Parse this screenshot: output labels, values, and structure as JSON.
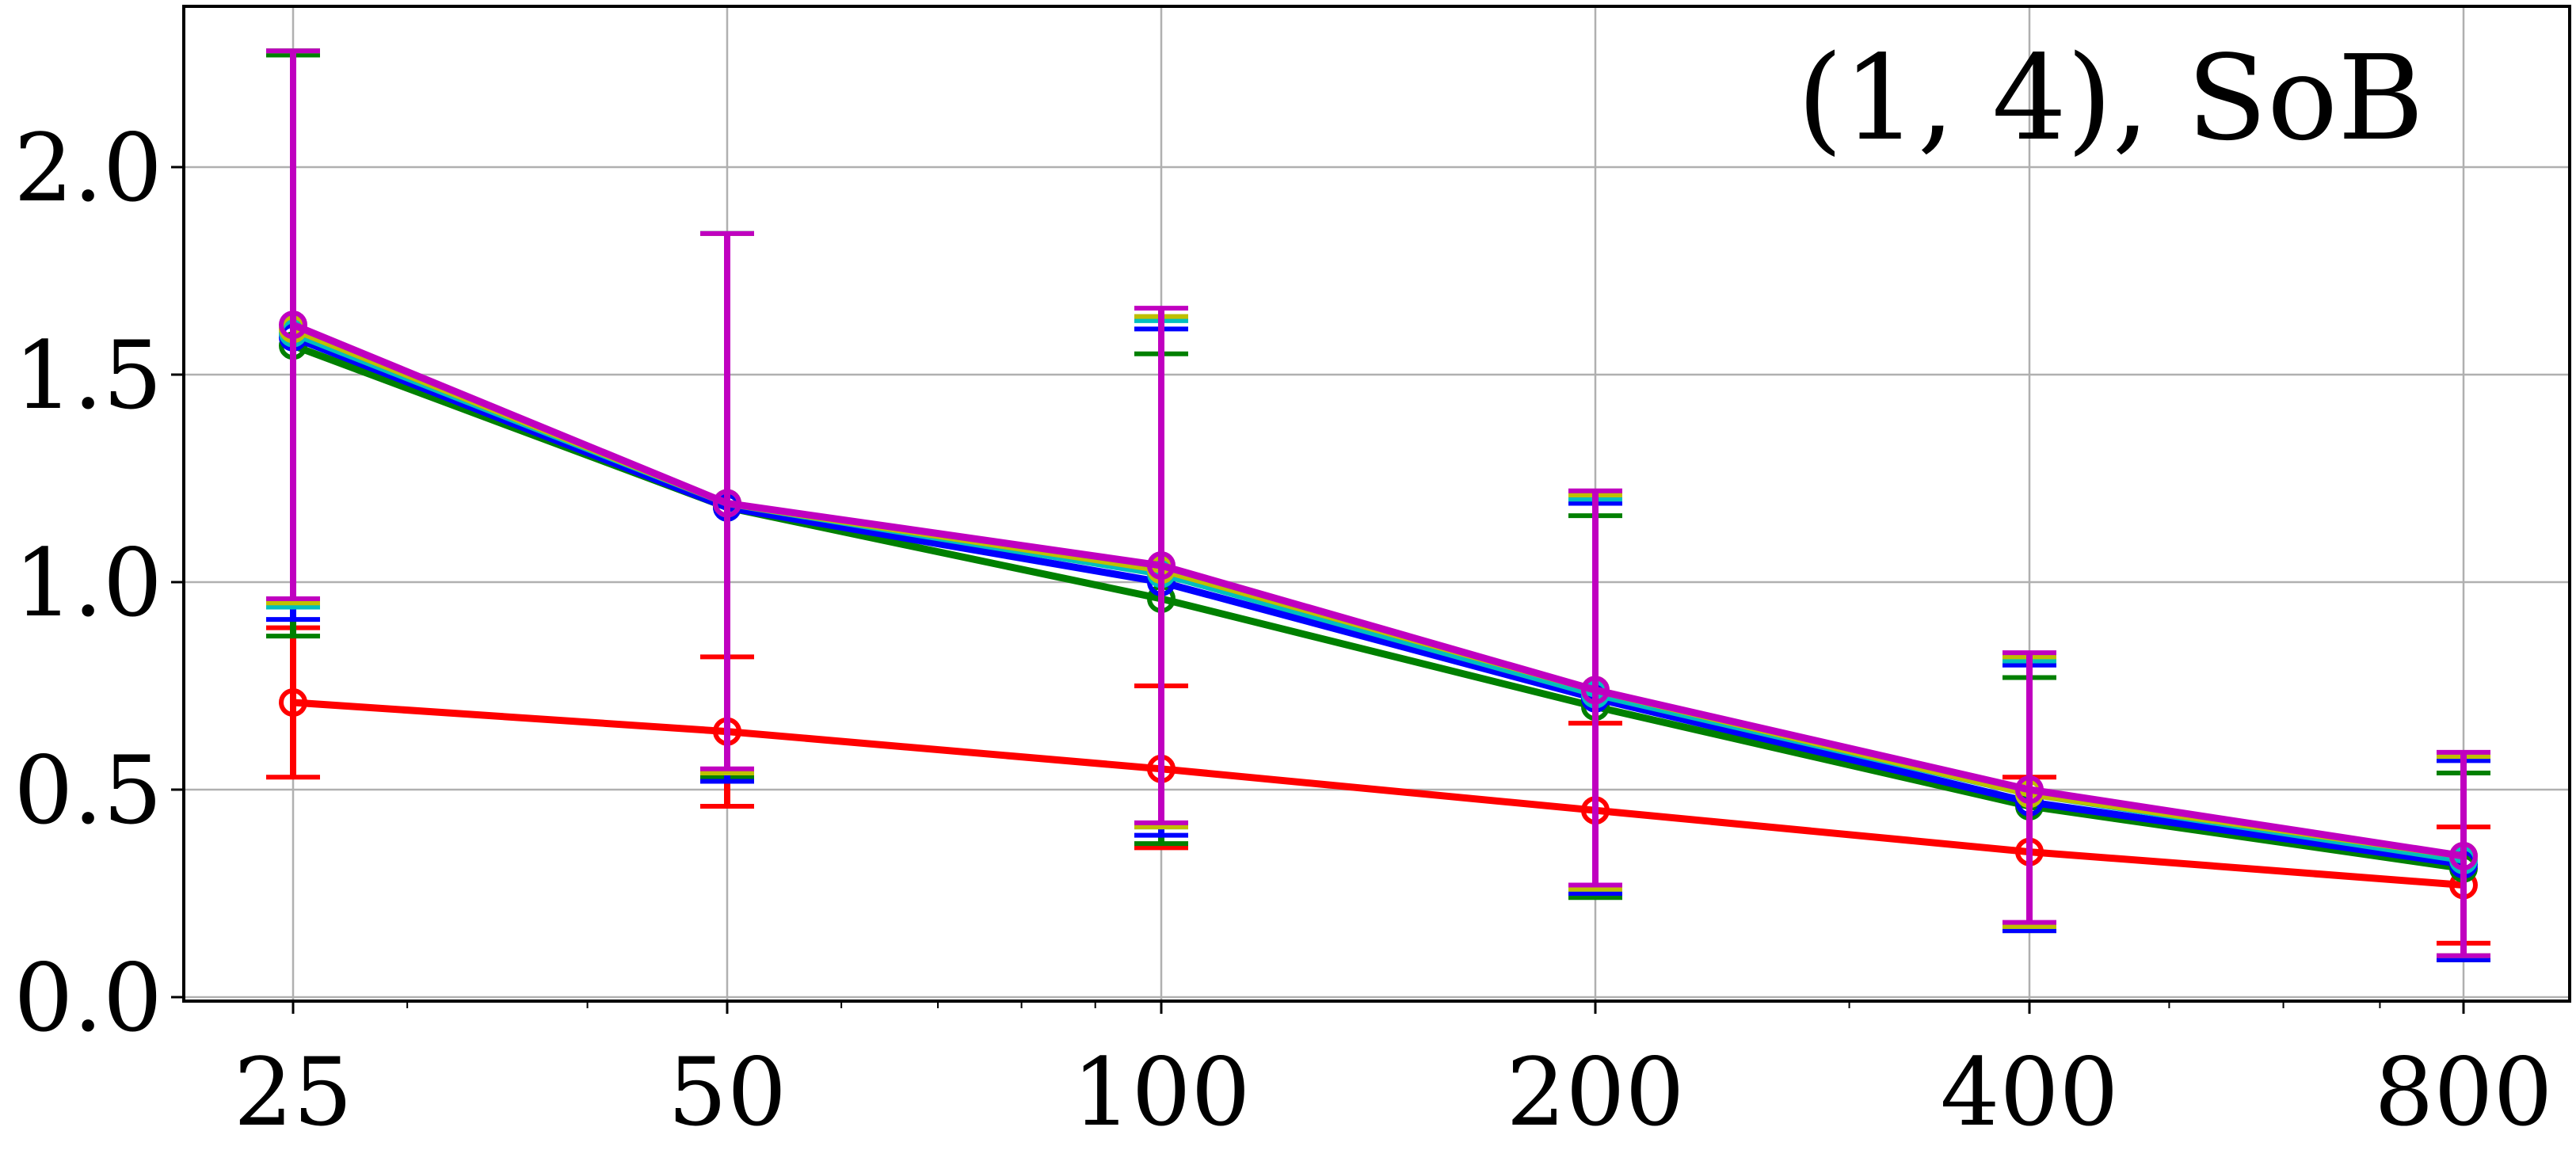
{
  "chart_data": {
    "type": "line",
    "title": "",
    "xlabel": "",
    "ylabel": "",
    "annotation": "(1, 4), SoB",
    "x_scale": "log",
    "x": [
      25,
      50,
      100,
      200,
      400,
      800
    ],
    "xticks": [
      "25",
      "50",
      "100",
      "200",
      "400",
      "800"
    ],
    "ylim": [
      0,
      2.4
    ],
    "yticks": [
      "0.0",
      "0.5",
      "1.0",
      "1.5",
      "2.0"
    ],
    "ytick_values": [
      0.0,
      0.5,
      1.0,
      1.5,
      2.0
    ],
    "grid": true,
    "legend": "none",
    "error_bars": true,
    "series": [
      {
        "color": "#ff0000",
        "values": [
          0.71,
          0.64,
          0.55,
          0.45,
          0.35,
          0.27
        ],
        "lower": [
          0.53,
          0.46,
          0.36,
          0.25,
          0.17,
          0.13
        ],
        "upper": [
          0.89,
          0.82,
          0.75,
          0.66,
          0.53,
          0.41
        ]
      },
      {
        "color": "#008000",
        "values": [
          1.57,
          1.18,
          0.96,
          0.7,
          0.46,
          0.31
        ],
        "lower": [
          0.87,
          0.53,
          0.37,
          0.24,
          0.16,
          0.09
        ],
        "upper": [
          2.27,
          1.84,
          1.55,
          1.16,
          0.77,
          0.54
        ]
      },
      {
        "color": "#0000ff",
        "values": [
          1.59,
          1.18,
          1.0,
          0.72,
          0.47,
          0.32
        ],
        "lower": [
          0.91,
          0.52,
          0.39,
          0.25,
          0.16,
          0.09
        ],
        "upper": [
          2.28,
          1.84,
          1.61,
          1.19,
          0.8,
          0.57
        ]
      },
      {
        "color": "#00bfbf",
        "values": [
          1.6,
          1.19,
          1.02,
          0.73,
          0.49,
          0.33
        ],
        "lower": [
          0.94,
          0.54,
          0.41,
          0.26,
          0.17,
          0.1
        ],
        "upper": [
          2.28,
          1.84,
          1.63,
          1.2,
          0.81,
          0.58
        ]
      },
      {
        "color": "#bfbf00",
        "values": [
          1.61,
          1.19,
          1.03,
          0.74,
          0.49,
          0.34
        ],
        "lower": [
          0.95,
          0.54,
          0.41,
          0.26,
          0.17,
          0.1
        ],
        "upper": [
          2.28,
          1.84,
          1.64,
          1.21,
          0.82,
          0.58
        ]
      },
      {
        "color": "#c000c0",
        "values": [
          1.62,
          1.19,
          1.04,
          0.74,
          0.5,
          0.34
        ],
        "lower": [
          0.96,
          0.55,
          0.42,
          0.27,
          0.18,
          0.1
        ],
        "upper": [
          2.28,
          1.84,
          1.66,
          1.22,
          0.83,
          0.59
        ]
      }
    ]
  }
}
